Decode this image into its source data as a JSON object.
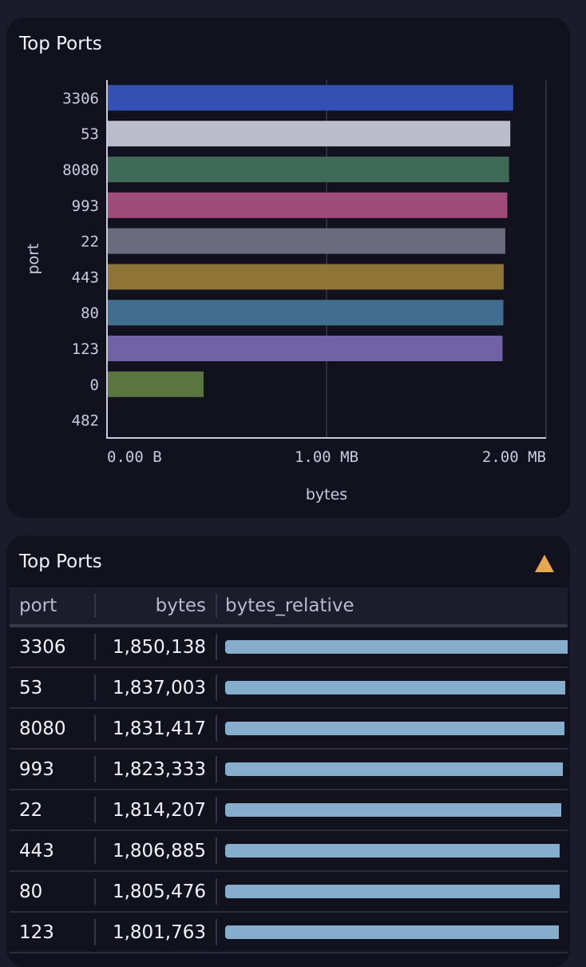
{
  "chart_panel": {
    "title": "Top Ports"
  },
  "chart_data": {
    "type": "bar",
    "orientation": "horizontal",
    "categories": [
      "3306",
      "53",
      "8080",
      "993",
      "22",
      "443",
      "80",
      "123",
      "0",
      "482"
    ],
    "values": [
      1850138,
      1837003,
      1831417,
      1823333,
      1814207,
      1806885,
      1805476,
      1801763,
      440000,
      0
    ],
    "colors": [
      "#3550b4",
      "#bdbccb",
      "#3f6a58",
      "#a04c7b",
      "#6a6b7e",
      "#8f7438",
      "#416d8f",
      "#7162a6",
      "#5b7540",
      "#5b7540"
    ],
    "xlabel": "bytes",
    "ylabel": "port",
    "xticks": [
      {
        "value": 0,
        "label": "0.00 B"
      },
      {
        "value": 1000000,
        "label": "1.00 MB"
      },
      {
        "value": 2000000,
        "label": "2.00 MB"
      }
    ],
    "xlim": [
      0,
      2000000
    ],
    "grid": "vertical"
  },
  "table_panel": {
    "title": "Top Ports",
    "warning_icon": "warning-triangle",
    "warning_color": "#e5a84f",
    "columns": [
      "port",
      "bytes",
      "bytes_relative"
    ],
    "rows": [
      {
        "port": "3306",
        "bytes": "1,850,138",
        "relative": 1.0
      },
      {
        "port": "53",
        "bytes": "1,837,003",
        "relative": 0.993
      },
      {
        "port": "8080",
        "bytes": "1,831,417",
        "relative": 0.99
      },
      {
        "port": "993",
        "bytes": "1,823,333",
        "relative": 0.986
      },
      {
        "port": "22",
        "bytes": "1,814,207",
        "relative": 0.981
      },
      {
        "port": "443",
        "bytes": "1,806,885",
        "relative": 0.977
      },
      {
        "port": "80",
        "bytes": "1,805,476",
        "relative": 0.976
      },
      {
        "port": "123",
        "bytes": "1,801,763",
        "relative": 0.974
      }
    ]
  }
}
